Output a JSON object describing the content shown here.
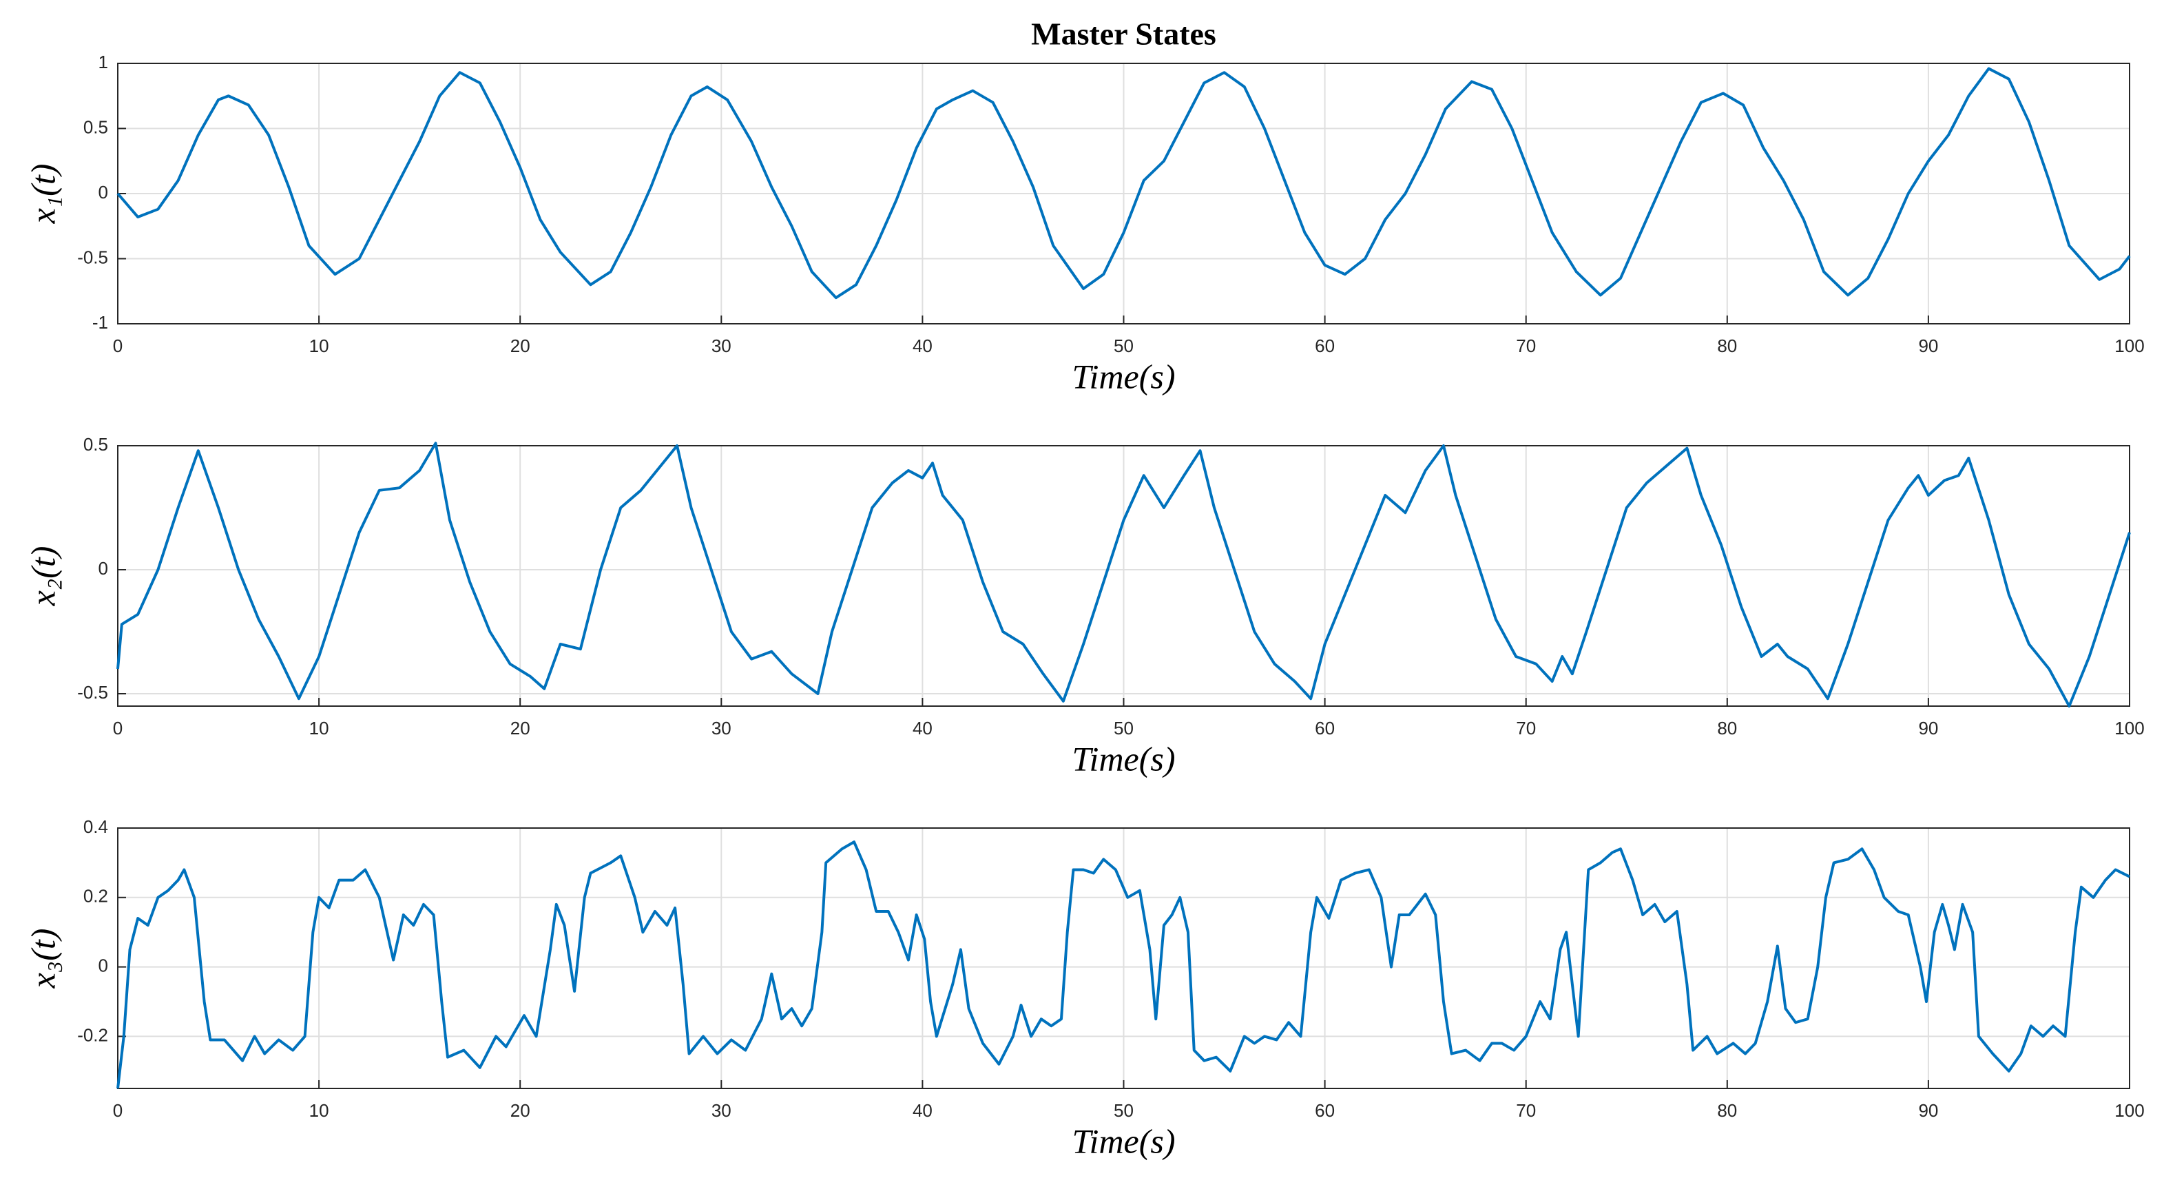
{
  "chart_data": [
    {
      "type": "line",
      "title": "Master States",
      "ylabel": "x₁(t)",
      "xlabel": "Time(s)",
      "xlim": [
        0,
        100
      ],
      "xticks": [
        0,
        10,
        20,
        30,
        40,
        50,
        60,
        70,
        80,
        90,
        100
      ],
      "ylim": [
        -1,
        1
      ],
      "yticks": [
        -1,
        -0.5,
        0,
        0.5,
        1
      ],
      "grid": true,
      "color": "#0072bd",
      "x": [
        0,
        1,
        2,
        3,
        4,
        5,
        5.5,
        6.5,
        7.5,
        8.5,
        9.5,
        10.8,
        12,
        13,
        14,
        15,
        16,
        17,
        18,
        19,
        20,
        21,
        22,
        23.5,
        24.5,
        25.5,
        26.5,
        27.5,
        28.5,
        29.3,
        30.3,
        31.5,
        32.5,
        33.5,
        34.5,
        35.7,
        36.7,
        37.7,
        38.7,
        39.7,
        40.7,
        41.5,
        42.5,
        43.5,
        44.5,
        45.5,
        46.5,
        48,
        49,
        50,
        51,
        52,
        53,
        54,
        55,
        56,
        57,
        58,
        59,
        60,
        61,
        62,
        63,
        64,
        65,
        66,
        67.3,
        68.3,
        69.3,
        70.3,
        71.3,
        72.5,
        73.7,
        74.7,
        75.7,
        76.7,
        77.7,
        78.7,
        79.8,
        80.8,
        81.8,
        82.8,
        83.8,
        84.8,
        86,
        87,
        88,
        89,
        90,
        91,
        92,
        93,
        94,
        95,
        96,
        97,
        98.5,
        99.5,
        100
      ],
      "values": [
        0,
        -0.18,
        -0.12,
        0.1,
        0.45,
        0.72,
        0.75,
        0.68,
        0.45,
        0.05,
        -0.4,
        -0.62,
        -0.5,
        -0.2,
        0.1,
        0.4,
        0.75,
        0.93,
        0.85,
        0.55,
        0.2,
        -0.2,
        -0.45,
        -0.7,
        -0.6,
        -0.3,
        0.05,
        0.45,
        0.75,
        0.82,
        0.72,
        0.4,
        0.05,
        -0.25,
        -0.6,
        -0.8,
        -0.7,
        -0.4,
        -0.05,
        0.35,
        0.65,
        0.72,
        0.79,
        0.7,
        0.4,
        0.05,
        -0.4,
        -0.73,
        -0.62,
        -0.3,
        0.1,
        0.25,
        0.55,
        0.85,
        0.93,
        0.82,
        0.5,
        0.1,
        -0.3,
        -0.55,
        -0.62,
        -0.5,
        -0.2,
        0,
        0.3,
        0.65,
        0.86,
        0.8,
        0.5,
        0.1,
        -0.3,
        -0.6,
        -0.78,
        -0.65,
        -0.3,
        0.05,
        0.4,
        0.7,
        0.77,
        0.68,
        0.35,
        0.1,
        -0.2,
        -0.6,
        -0.78,
        -0.65,
        -0.35,
        0,
        0.25,
        0.45,
        0.75,
        0.96,
        0.88,
        0.55,
        0.1,
        -0.4,
        -0.66,
        -0.58,
        -0.48
      ]
    },
    {
      "type": "line",
      "ylabel": "x₂(t)",
      "xlabel": "Time(s)",
      "xlim": [
        0,
        100
      ],
      "xticks": [
        0,
        10,
        20,
        30,
        40,
        50,
        60,
        70,
        80,
        90,
        100
      ],
      "ylim": [
        -0.55,
        0.5
      ],
      "yticks": [
        -0.5,
        0,
        0.5
      ],
      "grid": true,
      "color": "#0072bd",
      "x": [
        0,
        0.2,
        1,
        2,
        3,
        4,
        5,
        6,
        7,
        8,
        9,
        10,
        11,
        12,
        13,
        14,
        15,
        15.8,
        16.5,
        17.5,
        18.5,
        19.5,
        20.5,
        21.2,
        22,
        23,
        24,
        25,
        26,
        27,
        27.8,
        28.5,
        29.5,
        30.5,
        31.5,
        32.5,
        33.5,
        34.8,
        35.5,
        36.5,
        37.5,
        38.5,
        39.3,
        40,
        40.5,
        41,
        42,
        43,
        44,
        45,
        46,
        47,
        48,
        49,
        50,
        51,
        52,
        53,
        53.8,
        54.5,
        55.5,
        56.5,
        57.5,
        58.5,
        59.3,
        60,
        61,
        62,
        63,
        64,
        65,
        65.9,
        66.5,
        67.5,
        68.5,
        69.5,
        70.5,
        71.3,
        71.8,
        72.3,
        73,
        74,
        75,
        76,
        77,
        78,
        78.7,
        79.7,
        80.7,
        81.7,
        82.5,
        83,
        84,
        85,
        86,
        87,
        88,
        89,
        89.5,
        90,
        90.8,
        91.5,
        92,
        93,
        94,
        95,
        96,
        97,
        98,
        99,
        100
      ],
      "values": [
        -0.4,
        -0.22,
        -0.18,
        0,
        0.25,
        0.48,
        0.25,
        0,
        -0.2,
        -0.35,
        -0.52,
        -0.35,
        -0.1,
        0.15,
        0.32,
        0.33,
        0.4,
        0.51,
        0.2,
        -0.05,
        -0.25,
        -0.38,
        -0.43,
        -0.48,
        -0.3,
        -0.32,
        0,
        0.25,
        0.32,
        0.42,
        0.5,
        0.25,
        0,
        -0.25,
        -0.36,
        -0.33,
        -0.42,
        -0.5,
        -0.25,
        0,
        0.25,
        0.35,
        0.4,
        0.37,
        0.43,
        0.3,
        0.2,
        -0.05,
        -0.25,
        -0.3,
        -0.42,
        -0.53,
        -0.3,
        -0.05,
        0.2,
        0.38,
        0.25,
        0.38,
        0.48,
        0.25,
        0,
        -0.25,
        -0.38,
        -0.45,
        -0.52,
        -0.3,
        -0.1,
        0.1,
        0.3,
        0.23,
        0.4,
        0.5,
        0.3,
        0.05,
        -0.2,
        -0.35,
        -0.38,
        -0.45,
        -0.35,
        -0.42,
        -0.25,
        0,
        0.25,
        0.35,
        0.42,
        0.49,
        0.3,
        0.1,
        -0.15,
        -0.35,
        -0.3,
        -0.35,
        -0.4,
        -0.52,
        -0.3,
        -0.05,
        0.2,
        0.33,
        0.38,
        0.3,
        0.36,
        0.38,
        0.45,
        0.2,
        -0.1,
        -0.3,
        -0.4,
        -0.55,
        -0.35,
        -0.1,
        0.15
      ]
    },
    {
      "type": "line",
      "ylabel": "x₃(t)",
      "xlabel": "Time(s)",
      "xlim": [
        0,
        100
      ],
      "xticks": [
        0,
        10,
        20,
        30,
        40,
        50,
        60,
        70,
        80,
        90,
        100
      ],
      "ylim": [
        -0.35,
        0.4
      ],
      "yticks": [
        -0.2,
        0,
        0.2,
        0.4
      ],
      "grid": true,
      "color": "#0072bd",
      "x": [
        0,
        0.3,
        0.6,
        1,
        1.5,
        2,
        2.5,
        3,
        3.3,
        3.8,
        4.3,
        4.6,
        5.3,
        6.2,
        6.8,
        7.3,
        8,
        8.7,
        9.3,
        9.7,
        10,
        10.5,
        11,
        11.7,
        12.3,
        13,
        13.7,
        14.2,
        14.7,
        15.2,
        15.7,
        16.1,
        16.4,
        17.2,
        18,
        18.8,
        19.3,
        20.2,
        20.8,
        21.5,
        21.8,
        22.2,
        22.7,
        23.2,
        23.5,
        24.5,
        25,
        25.7,
        26.1,
        26.7,
        27.3,
        27.7,
        28.1,
        28.4,
        29.1,
        29.8,
        30.5,
        31.2,
        32,
        32.5,
        33,
        33.5,
        34,
        34.5,
        35,
        35.2,
        36,
        36.6,
        37.2,
        37.7,
        38.3,
        38.8,
        39.3,
        39.7,
        40.1,
        40.4,
        40.7,
        41.5,
        41.9,
        42.3,
        43,
        43.8,
        44.5,
        44.9,
        45.4,
        45.9,
        46.4,
        46.9,
        47.2,
        47.5,
        48,
        48.5,
        49,
        49.6,
        50.2,
        50.8,
        51.3,
        51.6,
        52,
        52.4,
        52.8,
        53.2,
        53.5,
        54,
        54.6,
        55.3,
        56,
        56.5,
        57,
        57.6,
        58.2,
        58.8,
        59.3,
        59.6,
        60.2,
        60.8,
        61.5,
        62.2,
        62.8,
        63.3,
        63.7,
        64.2,
        65,
        65.5,
        65.9,
        66.3,
        67,
        67.7,
        68.3,
        68.8,
        69.4,
        70,
        70.7,
        71.2,
        71.7,
        72,
        72.3,
        72.6,
        73.1,
        73.7,
        74.3,
        74.7,
        75.3,
        75.8,
        76.4,
        76.9,
        77.5,
        78,
        78.3,
        79,
        79.5,
        80.3,
        80.9,
        81.4,
        82,
        82.5,
        82.9,
        83.4,
        84,
        84.5,
        84.9,
        85.3,
        86,
        86.7,
        87.3,
        87.8,
        88.5,
        89,
        89.6,
        89.9,
        90.3,
        90.7,
        91,
        91.3,
        91.7,
        92.2,
        92.5,
        93.2,
        94,
        94.6,
        95.1,
        95.7,
        96.2,
        96.8,
        97.3,
        97.6,
        98.2,
        98.8,
        99.3,
        100
      ],
      "values": [
        -0.35,
        -0.2,
        0.05,
        0.14,
        0.12,
        0.2,
        0.22,
        0.25,
        0.28,
        0.2,
        -0.1,
        -0.21,
        -0.21,
        -0.27,
        -0.2,
        -0.25,
        -0.21,
        -0.24,
        -0.2,
        0.1,
        0.2,
        0.17,
        0.25,
        0.25,
        0.28,
        0.2,
        0.02,
        0.15,
        0.12,
        0.18,
        0.15,
        -0.1,
        -0.26,
        -0.24,
        -0.29,
        -0.2,
        -0.23,
        -0.14,
        -0.2,
        0.05,
        0.18,
        0.12,
        -0.07,
        0.2,
        0.27,
        0.3,
        0.32,
        0.2,
        0.1,
        0.16,
        0.12,
        0.17,
        -0.05,
        -0.25,
        -0.2,
        -0.25,
        -0.21,
        -0.24,
        -0.15,
        -0.02,
        -0.15,
        -0.12,
        -0.17,
        -0.12,
        0.1,
        0.3,
        0.34,
        0.36,
        0.28,
        0.16,
        0.16,
        0.1,
        0.02,
        0.15,
        0.08,
        -0.1,
        -0.2,
        -0.05,
        0.05,
        -0.12,
        -0.22,
        -0.28,
        -0.2,
        -0.11,
        -0.2,
        -0.15,
        -0.17,
        -0.15,
        0.1,
        0.28,
        0.28,
        0.27,
        0.31,
        0.28,
        0.2,
        0.22,
        0.05,
        -0.15,
        0.12,
        0.15,
        0.2,
        0.1,
        -0.24,
        -0.27,
        -0.26,
        -0.3,
        -0.2,
        -0.22,
        -0.2,
        -0.21,
        -0.16,
        -0.2,
        0.1,
        0.2,
        0.14,
        0.25,
        0.27,
        0.28,
        0.2,
        0,
        0.15,
        0.15,
        0.21,
        0.15,
        -0.1,
        -0.25,
        -0.24,
        -0.27,
        -0.22,
        -0.22,
        -0.24,
        -0.2,
        -0.1,
        -0.15,
        0.05,
        0.1,
        -0.05,
        -0.2,
        0.28,
        0.3,
        0.33,
        0.34,
        0.25,
        0.15,
        0.18,
        0.13,
        0.16,
        -0.05,
        -0.24,
        -0.2,
        -0.25,
        -0.22,
        -0.25,
        -0.22,
        -0.1,
        0.06,
        -0.12,
        -0.16,
        -0.15,
        0,
        0.2,
        0.3,
        0.31,
        0.34,
        0.28,
        0.2,
        0.16,
        0.15,
        0,
        -0.1,
        0.1,
        0.18,
        0.12,
        0.05,
        0.18,
        0.1,
        -0.2,
        -0.25,
        -0.3,
        -0.25,
        -0.17,
        -0.2,
        -0.17,
        -0.2,
        0.1,
        0.23,
        0.2,
        0.25,
        0.28,
        0.26
      ]
    }
  ]
}
